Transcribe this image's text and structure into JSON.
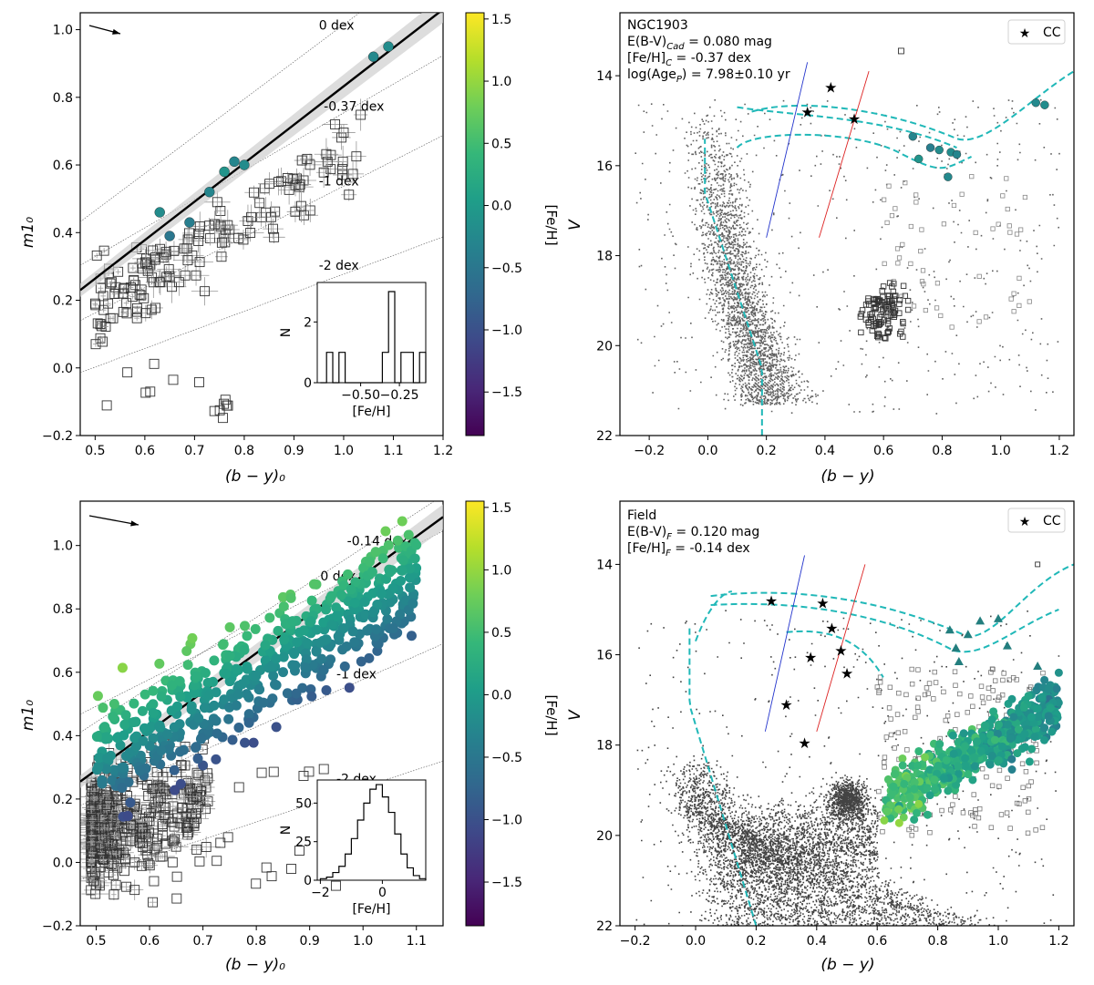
{
  "chart_data": [
    {
      "id": "p1",
      "type": "scatter",
      "xlabel": "(b − y)₀",
      "ylabel": "m1₀",
      "xlim": [
        0.47,
        1.2
      ],
      "ylim": [
        -0.2,
        1.05
      ],
      "xticks": [
        "0.5",
        "0.6",
        "0.7",
        "0.8",
        "0.9",
        "1.0",
        "1.1",
        "1.2"
      ],
      "yticks": [
        "−0.2",
        "0.0",
        "0.2",
        "0.4",
        "0.6",
        "0.8",
        "1.0"
      ],
      "iso_lines": [
        {
          "label": "0 dex",
          "lx": 0.95,
          "ly": 1.0
        },
        {
          "label": "-0.37 dex",
          "lx": 0.96,
          "ly": 0.76
        },
        {
          "label": "-1 dex",
          "lx": 0.95,
          "ly": 0.54
        },
        {
          "label": "-2 dex",
          "lx": 0.95,
          "ly": 0.29
        }
      ],
      "fit_line": {
        "x": [
          0.47,
          1.2
        ],
        "y": [
          0.23,
          1.06
        ]
      },
      "members_feh": [
        {
          "x": 0.63,
          "y": 0.46,
          "feh": -0.2
        },
        {
          "x": 0.65,
          "y": 0.39,
          "feh": -0.5
        },
        {
          "x": 0.69,
          "y": 0.43,
          "feh": -0.4
        },
        {
          "x": 0.73,
          "y": 0.52,
          "feh": -0.3
        },
        {
          "x": 0.76,
          "y": 0.58,
          "feh": -0.1
        },
        {
          "x": 0.78,
          "y": 0.61,
          "feh": -0.3
        },
        {
          "x": 0.8,
          "y": 0.6,
          "feh": -0.2
        },
        {
          "x": 1.06,
          "y": 0.92,
          "feh": -0.25
        },
        {
          "x": 1.09,
          "y": 0.95,
          "feh": -0.2
        }
      ],
      "inset": {
        "xlabel": "[Fe/H]",
        "ylabel": "N",
        "xticks": [
          "−0.50",
          "−0.25"
        ],
        "yticks": [
          "0",
          "2"
        ],
        "xlim": [
          -0.78,
          -0.08
        ],
        "ylim": [
          0,
          3.3
        ],
        "hist_x": [
          -0.76,
          -0.72,
          -0.68,
          -0.64,
          -0.6,
          -0.56,
          -0.52,
          -0.48,
          -0.44,
          -0.4,
          -0.36,
          -0.32,
          -0.28,
          -0.24,
          -0.2,
          -0.16,
          -0.12
        ],
        "hist_counts": [
          0,
          1,
          0,
          1,
          0,
          0,
          0,
          0,
          0,
          0,
          1,
          3,
          0,
          1,
          1,
          0,
          1
        ]
      }
    },
    {
      "id": "p2",
      "type": "scatter",
      "xlabel": "(b − y)",
      "ylabel": "V",
      "xlim": [
        -0.3,
        1.25
      ],
      "ylim": [
        22,
        12.6
      ],
      "xticks": [
        "−0.2",
        "0.0",
        "0.2",
        "0.4",
        "0.6",
        "0.8",
        "1.0",
        "1.2"
      ],
      "yticks": [
        "14",
        "16",
        "18",
        "20",
        "22"
      ],
      "legend": "CC",
      "info": [
        "NGC1903",
        "E(B-V)",
        "Cad",
        " = 0.080 mag",
        "[Fe/H]",
        "C",
        " = -0.37 dex",
        "log(Age",
        "P",
        ") = 7.98±0.10 yr"
      ],
      "cc_stars": [
        {
          "x": 0.34,
          "y": 14.8
        },
        {
          "x": 0.42,
          "y": 14.25
        },
        {
          "x": 0.5,
          "y": 14.95
        }
      ],
      "members_feh": [
        {
          "x": 0.7,
          "y": 15.35,
          "feh": -0.3
        },
        {
          "x": 0.72,
          "y": 15.85,
          "feh": -0.1
        },
        {
          "x": 0.76,
          "y": 15.6,
          "feh": -0.4
        },
        {
          "x": 0.79,
          "y": 15.65,
          "feh": -0.2
        },
        {
          "x": 0.82,
          "y": 16.25,
          "feh": -0.25
        },
        {
          "x": 0.83,
          "y": 15.7,
          "feh": -0.2
        },
        {
          "x": 0.85,
          "y": 15.75,
          "feh": -0.3
        },
        {
          "x": 1.12,
          "y": 14.6,
          "feh": -0.25
        },
        {
          "x": 1.15,
          "y": 14.65,
          "feh": -0.2
        }
      ]
    },
    {
      "id": "p3",
      "type": "scatter",
      "xlabel": "(b − y)₀",
      "ylabel": "m1₀",
      "xlim": [
        0.47,
        1.15
      ],
      "ylim": [
        -0.2,
        1.14
      ],
      "xticks": [
        "0.5",
        "0.6",
        "0.7",
        "0.8",
        "0.9",
        "1.0",
        "1.1"
      ],
      "yticks": [
        "−0.2",
        "0.0",
        "0.2",
        "0.4",
        "0.6",
        "0.8",
        "1.0"
      ],
      "iso_lines": [
        {
          "label": "-0.14 dex",
          "lx": 0.97,
          "ly": 1.0
        },
        {
          "label": "0 dex",
          "lx": 0.92,
          "ly": 0.89
        },
        {
          "label": "-1 dex",
          "lx": 0.95,
          "ly": 0.58
        },
        {
          "label": "-2 dex",
          "lx": 0.95,
          "ly": 0.25
        }
      ],
      "fit_line": {
        "x": [
          0.47,
          1.15
        ],
        "y": [
          0.255,
          1.09
        ]
      },
      "inset": {
        "xlabel": "[Fe/H]",
        "ylabel": "N",
        "xticks": [
          "−2",
          "0"
        ],
        "yticks": [
          "0",
          "25",
          "50"
        ],
        "xlim": [
          -2.1,
          1.4
        ],
        "ylim": [
          0,
          65
        ],
        "hist_x": [
          -2.0,
          -1.8,
          -1.6,
          -1.4,
          -1.2,
          -1.0,
          -0.8,
          -0.6,
          -0.4,
          -0.2,
          0.0,
          0.2,
          0.4,
          0.6,
          0.8,
          1.0,
          1.2
        ],
        "hist_counts": [
          1,
          2,
          5,
          9,
          17,
          27,
          39,
          50,
          59,
          62,
          54,
          44,
          30,
          17,
          8,
          3,
          1
        ]
      }
    },
    {
      "id": "p4",
      "type": "scatter",
      "xlabel": "(b − y)",
      "ylabel": "V",
      "xlim": [
        -0.25,
        1.25
      ],
      "ylim": [
        22,
        12.6
      ],
      "xticks": [
        "−0.2",
        "0.0",
        "0.2",
        "0.4",
        "0.6",
        "0.8",
        "1.0",
        "1.2"
      ],
      "yticks": [
        "14",
        "16",
        "18",
        "20",
        "22"
      ],
      "legend": "CC",
      "info": [
        "Field",
        "E(B-V)",
        "F",
        " = 0.120 mag",
        "[Fe/H]",
        "F",
        " = -0.14 dex"
      ],
      "cc_stars": [
        {
          "x": 0.25,
          "y": 14.8
        },
        {
          "x": 0.3,
          "y": 17.1
        },
        {
          "x": 0.36,
          "y": 17.95
        },
        {
          "x": 0.38,
          "y": 16.05
        },
        {
          "x": 0.42,
          "y": 14.85
        },
        {
          "x": 0.45,
          "y": 15.4
        },
        {
          "x": 0.48,
          "y": 15.9
        },
        {
          "x": 0.5,
          "y": 16.4
        }
      ],
      "triangles": [
        {
          "x": 0.84,
          "y": 15.45
        },
        {
          "x": 0.86,
          "y": 15.85
        },
        {
          "x": 0.87,
          "y": 16.15
        },
        {
          "x": 0.9,
          "y": 15.55
        },
        {
          "x": 0.94,
          "y": 15.25
        },
        {
          "x": 1.0,
          "y": 15.2
        },
        {
          "x": 1.03,
          "y": 15.8
        },
        {
          "x": 1.13,
          "y": 16.25
        }
      ]
    }
  ],
  "colorbar": {
    "label": "[Fe/H]",
    "range": [
      -1.85,
      1.55
    ],
    "ticks": [
      "1.5",
      "1.0",
      "0.5",
      "0.0",
      "−0.5",
      "−1.0",
      "−1.5"
    ],
    "colors": [
      "#440154",
      "#482878",
      "#3e4989",
      "#31688e",
      "#26828e",
      "#1f9e89",
      "#35b779",
      "#6ece58",
      "#b5de2b",
      "#fde725"
    ]
  }
}
